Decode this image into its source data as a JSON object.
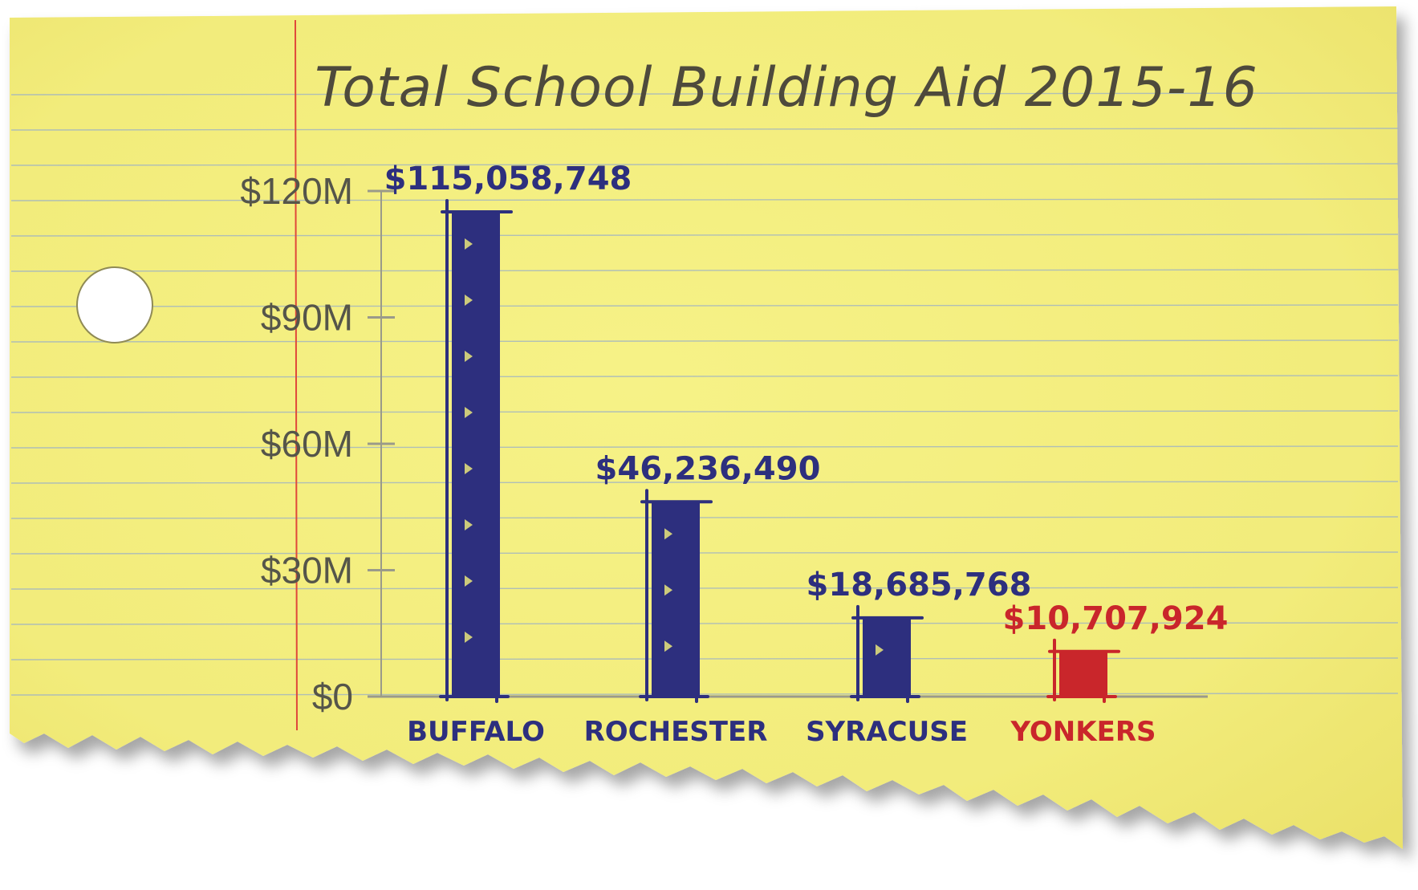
{
  "chart_data": {
    "type": "bar",
    "title": "Total School Building Aid 2015-16",
    "categories": [
      "BUFFALO",
      "ROCHESTER",
      "SYRACUSE",
      "YONKERS"
    ],
    "values": [
      115058748,
      46236490,
      18685768,
      10707924
    ],
    "value_labels": [
      "$115,058,748",
      "$46,236,490",
      "$18,685,768",
      "$10,707,924"
    ],
    "y_ticks": [
      {
        "value": 0,
        "label": "$0"
      },
      {
        "value": 30000000,
        "label": "$30M"
      },
      {
        "value": 60000000,
        "label": "$60M"
      },
      {
        "value": 90000000,
        "label": "$90M"
      },
      {
        "value": 120000000,
        "label": "$120M"
      }
    ],
    "ylim": [
      0,
      120000000
    ],
    "xlabel": "",
    "ylabel": "",
    "grid": false,
    "legend": "none",
    "colors": {
      "paper": "#f4ef7f",
      "paper_shade": "#ebe46a",
      "rule_line": "#9fb3c4",
      "margin_line": "#e0483a",
      "axis": "#9a9a8a",
      "tick_label": "#55554a",
      "title": "#4e4a3c",
      "bar_default": "#2d2f7e",
      "highlight": "#c9262b",
      "highlight_category": "YONKERS"
    }
  }
}
